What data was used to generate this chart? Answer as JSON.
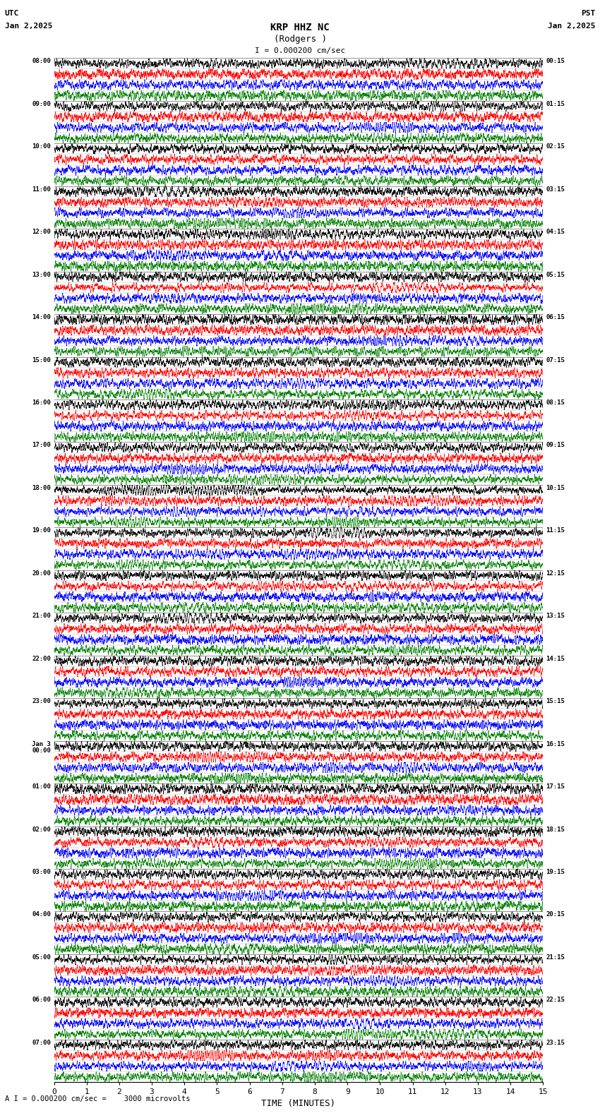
{
  "title_center": "KRP HHZ NC",
  "title_sub": "(Rodgers )",
  "scale_label": "I = 0.000200 cm/sec",
  "footer_label": "A I = 0.000200 cm/sec =    3000 microvolts",
  "utc_label": "UTC",
  "utc_date": "Jan 2,2025",
  "pst_label": "PST",
  "pst_date": "Jan 2,2025",
  "xlabel": "TIME (MINUTES)",
  "xlim": [
    0,
    15
  ],
  "xticks": [
    0,
    1,
    2,
    3,
    4,
    5,
    6,
    7,
    8,
    9,
    10,
    11,
    12,
    13,
    14,
    15
  ],
  "left_times": [
    "08:00",
    "09:00",
    "10:00",
    "11:00",
    "12:00",
    "13:00",
    "14:00",
    "15:00",
    "16:00",
    "17:00",
    "18:00",
    "19:00",
    "20:00",
    "21:00",
    "22:00",
    "23:00",
    "Jan 3\n00:00",
    "01:00",
    "02:00",
    "03:00",
    "04:00",
    "05:00",
    "06:00",
    "07:00"
  ],
  "right_times": [
    "00:15",
    "01:15",
    "02:15",
    "03:15",
    "04:15",
    "05:15",
    "06:15",
    "07:15",
    "08:15",
    "09:15",
    "10:15",
    "11:15",
    "12:15",
    "13:15",
    "14:15",
    "15:15",
    "16:15",
    "17:15",
    "18:15",
    "19:15",
    "20:15",
    "21:15",
    "22:15",
    "23:15"
  ],
  "n_rows": 24,
  "n_traces_per_row": 4,
  "trace_colors": [
    "black",
    "red",
    "blue",
    "green"
  ],
  "bg_color": "white",
  "figsize": [
    8.5,
    15.84
  ],
  "dpi": 100,
  "samples_per_trace": 8000,
  "seed": 42
}
